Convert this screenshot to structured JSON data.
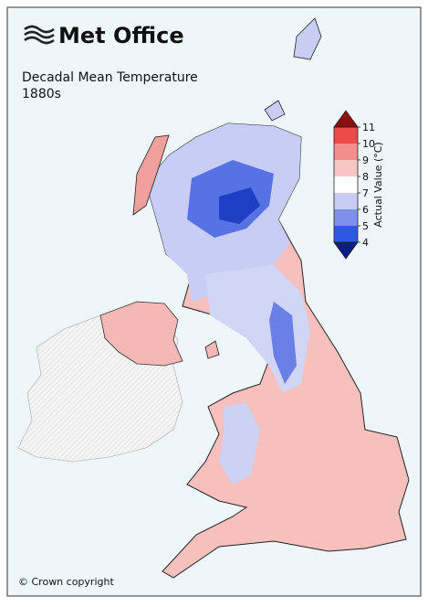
{
  "logo": {
    "text": "Met Office"
  },
  "title": "Decadal Mean Temperature",
  "subtitle": "1880s",
  "copyright": "© Crown copyright",
  "colorbar": {
    "label": "Actual Value (°C)",
    "lim": [
      4,
      11
    ],
    "ticks": [
      4,
      5,
      6,
      7,
      8,
      9,
      10,
      11
    ],
    "colors": [
      "#2f57e6",
      "#7d8fe9",
      "#c8ccf4",
      "#ffffff",
      "#f8c6c4",
      "#f28f8c",
      "#ec4a48"
    ],
    "under_color": "#0a1c8a",
    "over_color": "#8c0d0d"
  }
}
